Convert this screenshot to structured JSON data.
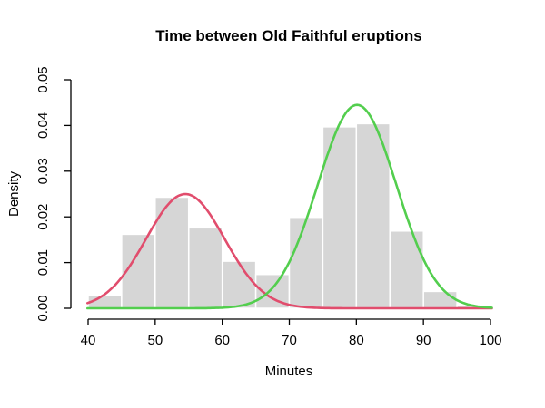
{
  "window": {
    "background": "#ffffff"
  },
  "chart_data": {
    "type": "histogram",
    "title": "Time between Old Faithful eruptions",
    "xlabel": "Minutes",
    "ylabel": "Density",
    "xlim": [
      40,
      100
    ],
    "ylim": [
      0,
      0.05
    ],
    "x_ticks": [
      "40",
      "50",
      "60",
      "70",
      "80",
      "90",
      "100"
    ],
    "y_ticks": [
      "0.00",
      "0.01",
      "0.02",
      "0.03",
      "0.04",
      "0.05"
    ],
    "grid": false,
    "legend_position": "none",
    "axis_color": "#000000",
    "text_color": "#000000",
    "histogram": {
      "bar_fill": "#d6d6d6",
      "bar_border": "#ffffff",
      "bin_breaks": [
        40,
        45,
        50,
        55,
        60,
        65,
        70,
        75,
        80,
        85,
        90,
        95,
        100
      ],
      "bin_densities": [
        0.0029,
        0.0162,
        0.0243,
        0.0176,
        0.0103,
        0.0074,
        0.0199,
        0.0397,
        0.0404,
        0.0169,
        0.0037,
        0.0007
      ]
    },
    "curves": [
      {
        "name": "density-curve-component-1",
        "shape": "gaussian",
        "mean": 54.5,
        "sd": 5.87,
        "peak": 0.025,
        "color": "#e14d6d"
      },
      {
        "name": "density-curve-component-2",
        "shape": "gaussian",
        "mean": 80.1,
        "sd": 5.87,
        "peak": 0.0445,
        "color": "#53ce4e"
      }
    ]
  }
}
